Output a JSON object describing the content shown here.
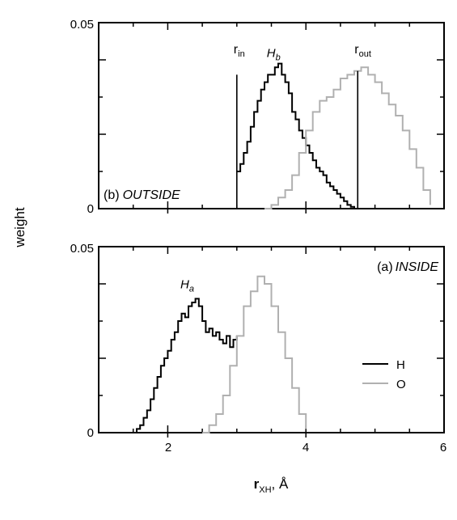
{
  "chart_data": [
    {
      "panel": "b",
      "type": "line",
      "label_prefix": "(b)",
      "label_text": "OUTSIDE",
      "xlim": [
        1,
        6
      ],
      "ylim": [
        0,
        0.05
      ],
      "ytick_labels": [
        "0",
        "0.05"
      ],
      "series": [
        {
          "name": "H",
          "color": "#000000",
          "x": [
            3.0,
            3.05,
            3.1,
            3.15,
            3.2,
            3.25,
            3.3,
            3.35,
            3.4,
            3.45,
            3.5,
            3.55,
            3.6,
            3.65,
            3.7,
            3.75,
            3.8,
            3.85,
            3.9,
            3.95,
            4.0,
            4.05,
            4.1,
            4.15,
            4.2,
            4.25,
            4.3,
            4.35,
            4.4,
            4.45,
            4.5,
            4.55,
            4.6,
            4.65,
            4.7
          ],
          "y": [
            0.01,
            0.012,
            0.015,
            0.018,
            0.022,
            0.026,
            0.029,
            0.032,
            0.034,
            0.036,
            0.036,
            0.038,
            0.039,
            0.036,
            0.034,
            0.031,
            0.026,
            0.024,
            0.021,
            0.019,
            0.017,
            0.015,
            0.013,
            0.011,
            0.01,
            0.009,
            0.007,
            0.006,
            0.005,
            0.004,
            0.003,
            0.002,
            0.001,
            0.0005,
            0.0
          ]
        },
        {
          "name": "O",
          "color": "#b0b0b0",
          "x": [
            3.4,
            3.5,
            3.6,
            3.7,
            3.8,
            3.9,
            4.0,
            4.1,
            4.2,
            4.3,
            4.4,
            4.5,
            4.6,
            4.7,
            4.8,
            4.9,
            5.0,
            5.1,
            5.2,
            5.3,
            5.4,
            5.5,
            5.6,
            5.7,
            5.8
          ],
          "y": [
            0.0,
            0.001,
            0.003,
            0.005,
            0.009,
            0.015,
            0.021,
            0.026,
            0.029,
            0.03,
            0.032,
            0.035,
            0.036,
            0.037,
            0.038,
            0.036,
            0.034,
            0.031,
            0.028,
            0.025,
            0.021,
            0.016,
            0.011,
            0.005,
            0.001
          ]
        }
      ],
      "markers": [
        {
          "label": "r_in",
          "main": "r",
          "sub": "in",
          "x": 3.0,
          "y_top": 0.036
        },
        {
          "label": "r_out",
          "main": "r",
          "sub": "out",
          "x": 4.75,
          "y_top": 0.037
        }
      ],
      "annotations": [
        {
          "main": "H",
          "sub": "b",
          "x": 3.55,
          "y": 0.0395
        }
      ]
    },
    {
      "panel": "a",
      "type": "line",
      "label_prefix": "(a)",
      "label_text": "INSIDE",
      "xlim": [
        1,
        6
      ],
      "ylim": [
        0,
        0.05
      ],
      "xtick_labels": [
        "2",
        "4",
        "6"
      ],
      "ytick_labels": [
        "0",
        "0.05"
      ],
      "series": [
        {
          "name": "H",
          "color": "#000000",
          "x": [
            1.5,
            1.55,
            1.6,
            1.65,
            1.7,
            1.75,
            1.8,
            1.85,
            1.9,
            1.95,
            2.0,
            2.05,
            2.1,
            2.15,
            2.2,
            2.25,
            2.3,
            2.35,
            2.4,
            2.45,
            2.5,
            2.55,
            2.6,
            2.65,
            2.7,
            2.75,
            2.8,
            2.85,
            2.9,
            2.95,
            3.0
          ],
          "y": [
            0.0,
            0.001,
            0.002,
            0.004,
            0.006,
            0.009,
            0.012,
            0.015,
            0.018,
            0.02,
            0.022,
            0.025,
            0.027,
            0.03,
            0.032,
            0.031,
            0.034,
            0.035,
            0.036,
            0.034,
            0.03,
            0.027,
            0.028,
            0.026,
            0.027,
            0.025,
            0.024,
            0.026,
            0.023,
            0.025,
            0.026
          ]
        },
        {
          "name": "O",
          "color": "#b0b0b0",
          "x": [
            2.5,
            2.6,
            2.7,
            2.8,
            2.9,
            3.0,
            3.1,
            3.2,
            3.3,
            3.4,
            3.5,
            3.6,
            3.7,
            3.8,
            3.9,
            4.0
          ],
          "y": [
            0.0,
            0.002,
            0.005,
            0.01,
            0.018,
            0.026,
            0.034,
            0.038,
            0.042,
            0.04,
            0.034,
            0.027,
            0.02,
            0.012,
            0.005,
            0.001
          ]
        }
      ],
      "annotations": [
        {
          "main": "H",
          "sub": "a",
          "x": 2.3,
          "y": 0.0375
        }
      ]
    }
  ],
  "axes": {
    "ylabel": "weight",
    "xlabel_main": "r",
    "xlabel_sub": "XH",
    "xlabel_unit": ", Å"
  },
  "legend": [
    {
      "label": "H",
      "color": "#000000"
    },
    {
      "label": "O",
      "color": "#b0b0b0"
    }
  ]
}
